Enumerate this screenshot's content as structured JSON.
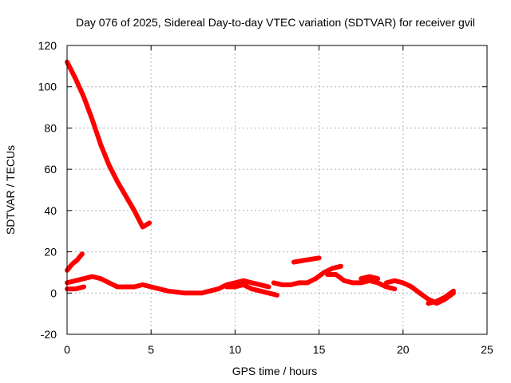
{
  "chart_data": {
    "type": "line",
    "title": "Day 076 of 2025, Sidereal Day-to-day VTEC variation (SDTVAR) for receiver gvil",
    "xlabel": "GPS time / hours",
    "ylabel": "SDTVAR / TECUs",
    "xlim": [
      0,
      25
    ],
    "ylim": [
      -20,
      120
    ],
    "xticks": [
      0,
      5,
      10,
      15,
      20,
      25
    ],
    "yticks": [
      -20,
      0,
      20,
      40,
      60,
      80,
      100,
      120
    ],
    "grid": true,
    "color": "#ff0000",
    "series": [
      {
        "x": [
          0.0,
          0.5,
          1.0,
          1.5,
          2.0,
          2.5,
          3.0,
          3.5,
          4.0,
          4.5,
          4.9
        ],
        "values": [
          112,
          104,
          95,
          84,
          72,
          62,
          54,
          47,
          40,
          32,
          34
        ]
      },
      {
        "x": [
          0.0,
          0.3,
          0.6,
          0.9
        ],
        "values": [
          11,
          14,
          16,
          19
        ]
      },
      {
        "x": [
          0.0,
          0.5,
          1.0,
          1.5,
          2.0,
          2.5,
          3.0,
          3.5,
          4.0,
          4.5,
          5.0
        ],
        "values": [
          5,
          6,
          7,
          8,
          7,
          5,
          3,
          3,
          3,
          4,
          3
        ]
      },
      {
        "x": [
          0.0,
          0.5,
          1.0
        ],
        "values": [
          2,
          2,
          3
        ]
      },
      {
        "x": [
          5.0,
          6.0,
          7.0,
          8.0,
          8.5,
          9.0,
          9.5,
          10.0,
          10.5,
          11.0,
          11.5,
          12.0
        ],
        "values": [
          3,
          1,
          0,
          0,
          1,
          2,
          4,
          5,
          6,
          5,
          4,
          3
        ]
      },
      {
        "x": [
          9.5,
          10.0,
          10.5,
          11.0,
          11.5,
          12.0,
          12.5
        ],
        "values": [
          3,
          3,
          4,
          2,
          1,
          0,
          -1
        ]
      },
      {
        "x": [
          12.3,
          12.8,
          13.3,
          13.8,
          14.3,
          14.8,
          15.3,
          15.8,
          16.3
        ],
        "values": [
          5,
          4,
          4,
          5,
          5,
          7,
          10,
          12,
          13
        ]
      },
      {
        "x": [
          13.5,
          14.2,
          15.0
        ],
        "values": [
          15,
          16,
          17
        ]
      },
      {
        "x": [
          15.5,
          16.0,
          16.5,
          17.0,
          17.5,
          18.0,
          18.5,
          19.0,
          19.5
        ],
        "values": [
          9,
          9,
          6,
          5,
          5,
          6,
          5,
          3,
          2
        ]
      },
      {
        "x": [
          17.5,
          18.0,
          18.5
        ],
        "values": [
          7,
          8,
          7
        ]
      },
      {
        "x": [
          19.0,
          19.5,
          20.0,
          20.5,
          21.0,
          21.5,
          22.0,
          22.5,
          23.0
        ],
        "values": [
          5,
          6,
          5,
          3,
          0,
          -3,
          -5,
          -3,
          0
        ]
      },
      {
        "x": [
          21.5,
          22.0,
          22.5,
          23.0
        ],
        "values": [
          -5,
          -4,
          -2,
          1
        ]
      }
    ]
  }
}
